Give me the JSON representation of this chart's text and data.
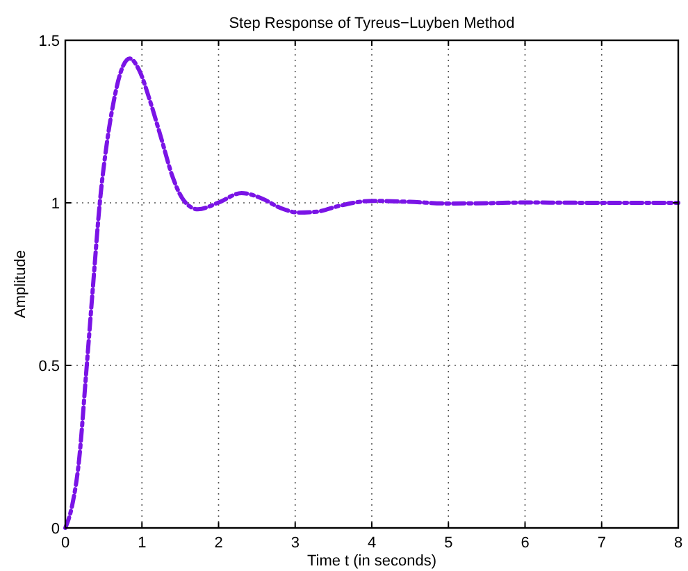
{
  "chart_data": {
    "type": "line",
    "title": "Step Response of Tyreus−Luyben Method",
    "xlabel": "Time t (in seconds)",
    "ylabel": "Amplitude",
    "xlim": [
      0,
      8
    ],
    "ylim": [
      0,
      1.5
    ],
    "xticks": [
      0,
      1,
      2,
      3,
      4,
      5,
      6,
      7,
      8
    ],
    "yticks": [
      0,
      0.5,
      1,
      1.5
    ],
    "grid": true,
    "line_style": "dashed",
    "series": [
      {
        "color": "#7a14e6",
        "x": [
          0,
          0.09,
          0.18,
          0.27,
          0.36,
          0.45,
          0.54,
          0.63,
          0.72,
          0.84,
          0.96,
          1.11,
          1.25,
          1.4,
          1.55,
          1.73,
          2.0,
          2.3,
          2.57,
          2.81,
          3.05,
          3.29,
          3.58,
          4.0,
          4.5,
          5.0,
          5.5,
          6.0,
          7.0,
          8.0
        ],
        "values": [
          0,
          0.07,
          0.21,
          0.47,
          0.74,
          1.0,
          1.18,
          1.31,
          1.4,
          1.444,
          1.41,
          1.31,
          1.2,
          1.08,
          1.006,
          0.98,
          1.001,
          1.03,
          1.013,
          0.984,
          0.97,
          0.973,
          0.991,
          1.006,
          1.003,
          0.998,
          0.999,
          1.001,
          1.0,
          1.0
        ]
      }
    ]
  }
}
